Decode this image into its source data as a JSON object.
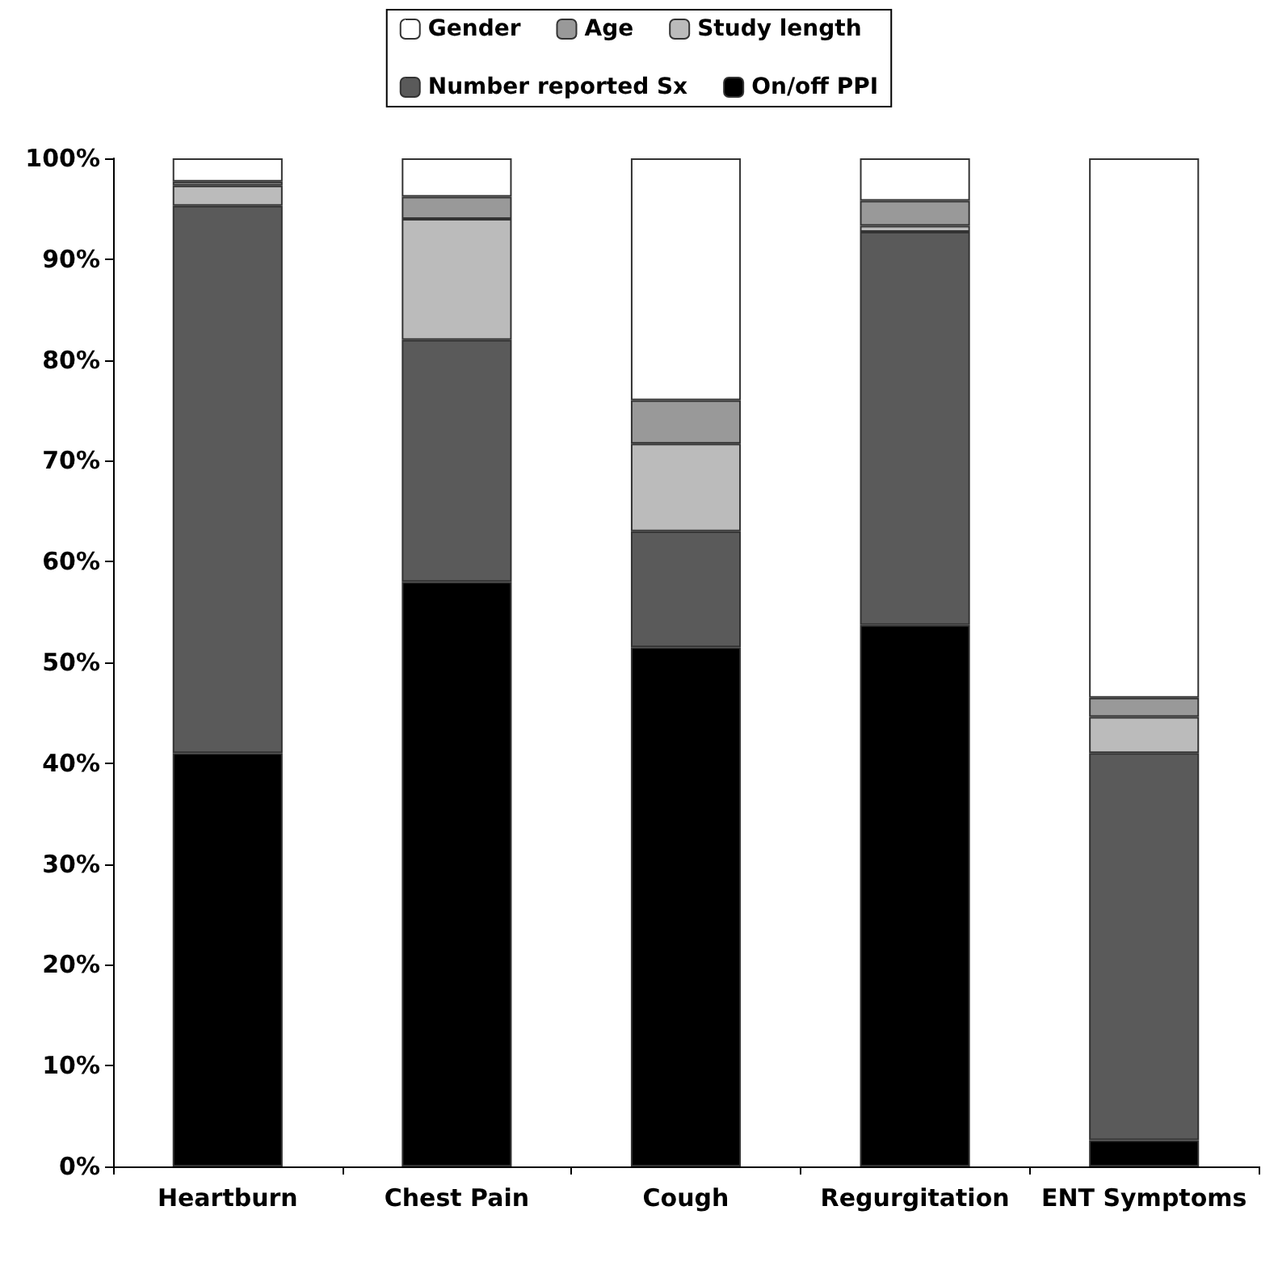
{
  "chart_data": {
    "type": "bar",
    "stacked": true,
    "legend": "top",
    "grid": false,
    "categories": [
      "Heartburn",
      "Chest Pain",
      "Cough",
      "Regurgitation",
      "ENT Symptoms"
    ],
    "series": [
      {
        "name": "On/off PPI",
        "color": "#000000",
        "values": [
          41,
          58,
          51.5,
          53.7,
          2.6
        ]
      },
      {
        "name": "Number reported Sx",
        "color": "#5a5a5a",
        "values": [
          54.3,
          24,
          11.5,
          39,
          38.4
        ]
      },
      {
        "name": "Study length",
        "color": "#bbbbbb",
        "values": [
          2,
          12,
          8.7,
          0.6,
          3.6
        ]
      },
      {
        "name": "Age",
        "color": "#999999",
        "values": [
          0.4,
          2.2,
          4.3,
          2.5,
          1.9
        ]
      },
      {
        "name": "Gender",
        "color": "#ffffff",
        "values": [
          2.3,
          3.8,
          24,
          4.2,
          53.5
        ]
      }
    ],
    "ylim": [
      0,
      100
    ],
    "yticks": [
      {
        "value": 0,
        "label": "0%"
      },
      {
        "value": 10,
        "label": "10%"
      },
      {
        "value": 20,
        "label": "20%"
      },
      {
        "value": 30,
        "label": "30%"
      },
      {
        "value": 40,
        "label": "40%"
      },
      {
        "value": 50,
        "label": "50%"
      },
      {
        "value": 60,
        "label": "60%"
      },
      {
        "value": 70,
        "label": "70%"
      },
      {
        "value": 80,
        "label": "80%"
      },
      {
        "value": 90,
        "label": "90%"
      },
      {
        "value": 100,
        "label": "100%"
      }
    ]
  }
}
